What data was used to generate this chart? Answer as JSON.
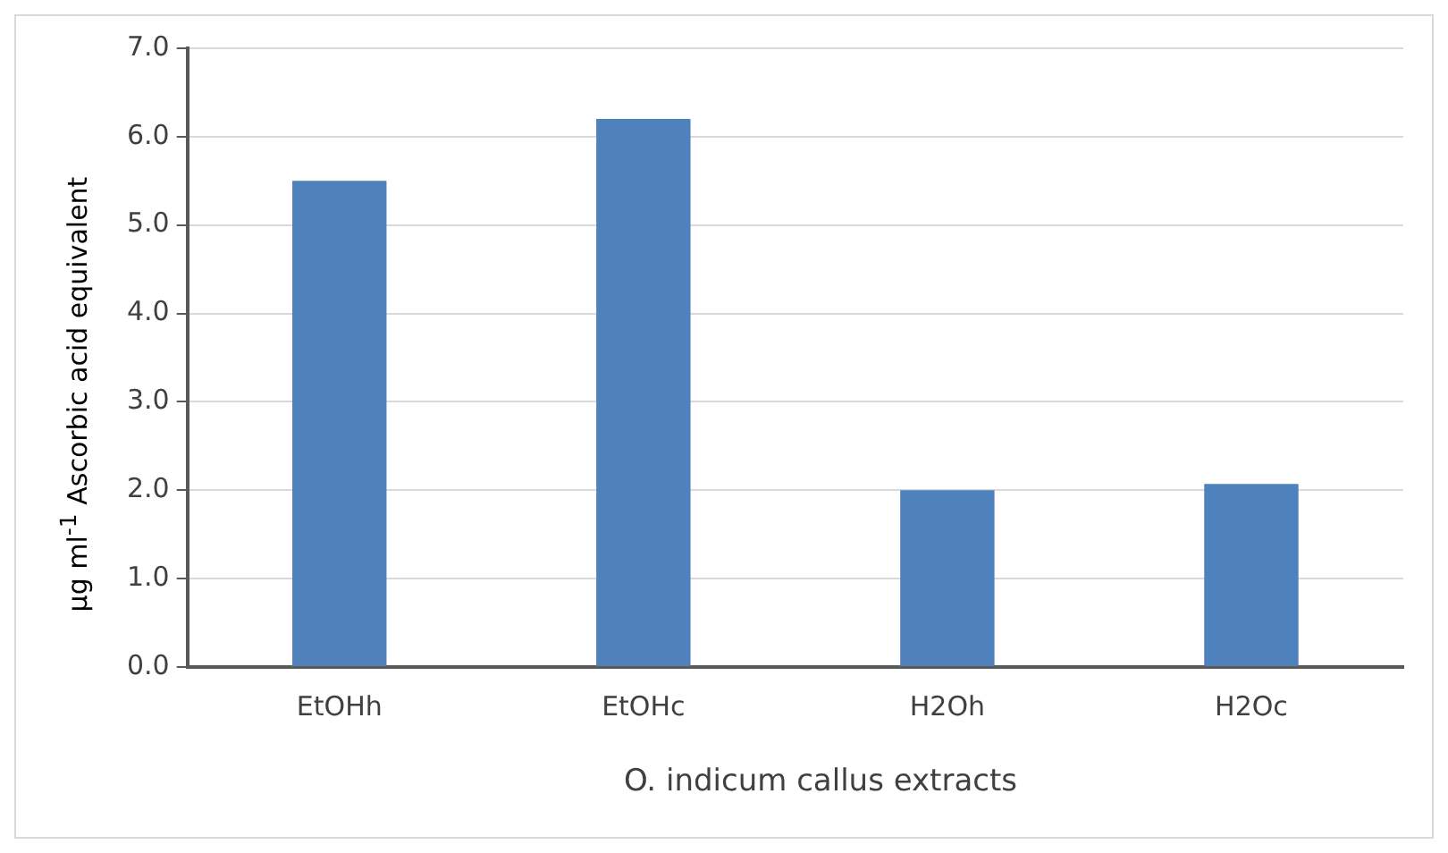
{
  "chart_data": {
    "type": "bar",
    "xlabel": "O. indicum callus extracts",
    "ylabel": "µg ml$^{-1}$ Ascorbic acid equivalent",
    "categories": [
      "EtOHh",
      "EtOHc",
      "H2Oh",
      "H2Oc"
    ],
    "values": [
      5.5,
      6.2,
      2.0,
      2.07
    ],
    "color": "#4f81bd",
    "ylim": [
      0,
      7
    ],
    "yticks": [
      {
        "value": 0,
        "label": "0.0"
      },
      {
        "value": 1,
        "label": "1.0"
      },
      {
        "value": 2,
        "label": "2.0"
      },
      {
        "value": 3,
        "label": "3.0"
      },
      {
        "value": 4,
        "label": "4.0"
      },
      {
        "value": 5,
        "label": "5.0"
      },
      {
        "value": 6,
        "label": "6.0"
      },
      {
        "value": 7,
        "label": "7.0"
      }
    ],
    "grid": "y",
    "legend": false
  }
}
